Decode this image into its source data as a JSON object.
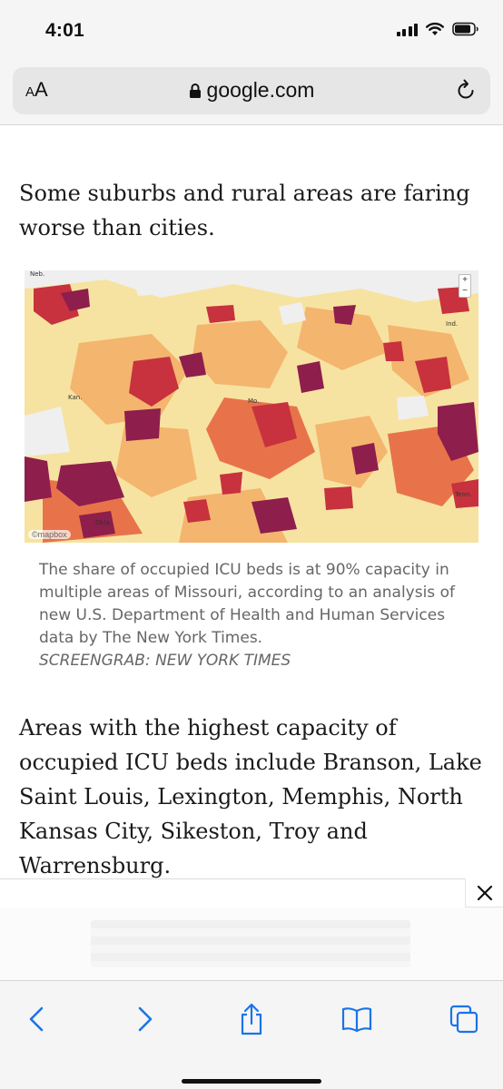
{
  "status_bar": {
    "time": "4:01",
    "icons": [
      "cellular-signal-icon",
      "wifi-icon",
      "battery-icon"
    ]
  },
  "address_bar": {
    "text_size_button": "AA",
    "domain": "google.com",
    "icons": [
      "lock-icon",
      "reload-icon"
    ]
  },
  "article": {
    "paragraph_1": "Some suburbs and rural areas are faring worse than cities.",
    "map": {
      "zoom_in": "+",
      "zoom_out": "−",
      "attribution": "©mapbox",
      "state_labels": [
        "Neb.",
        "Kan.",
        "Mo.",
        "Ind.",
        "Tenn.",
        "Okla."
      ],
      "color_scale": [
        "#f7e3a1",
        "#f4b56e",
        "#e8734a",
        "#c7323e",
        "#8e1e4c"
      ]
    },
    "caption": {
      "text": "The share of occupied ICU beds is at 90% capacity in multiple areas of Missouri, according to an analysis of new U.S. Department of Health and Human Services data by The New York Times.",
      "credit": "SCREENGRAB: NEW YORK TIMES"
    },
    "paragraph_2": "Areas with the highest capacity of occupied ICU beds include Branson, Lake Saint Louis, Lexington, Memphis, North Kansas City, Sikeston, Troy and Warrensburg."
  },
  "ad": {
    "close_label": "✕"
  },
  "toolbar": {
    "buttons": [
      "back-icon",
      "forward-icon",
      "share-icon",
      "bookmarks-icon",
      "tabs-icon"
    ]
  }
}
